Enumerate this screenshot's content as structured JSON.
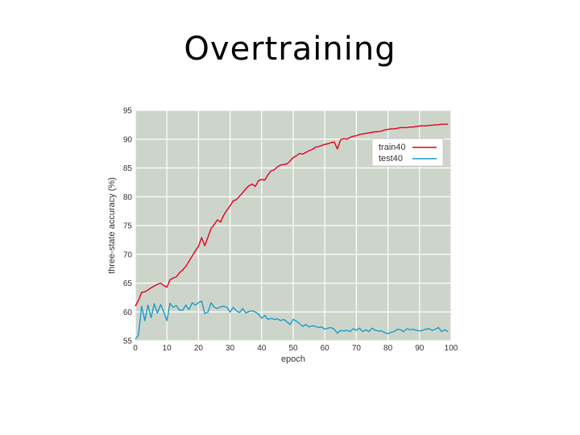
{
  "slide": {
    "title": "Overtraining"
  },
  "colors": {
    "plot_bg": "#cdd5cb",
    "grid": "#ffffff",
    "train": "#e3001b",
    "test": "#1a9bc7",
    "axis_text": "#333333"
  },
  "chart_data": {
    "type": "line",
    "title": "",
    "xlabel": "epoch",
    "ylabel": "three-state accuracy (%)",
    "xlim": [
      0,
      100
    ],
    "ylim": [
      55,
      95
    ],
    "xticks": [
      0,
      10,
      20,
      30,
      40,
      50,
      60,
      70,
      80,
      90,
      100
    ],
    "yticks": [
      55,
      60,
      65,
      70,
      75,
      80,
      85,
      90,
      95
    ],
    "grid": true,
    "legend_position": "top-right",
    "series": [
      {
        "name": "train40",
        "color": "#e3001b",
        "x": [
          0,
          1,
          2,
          3,
          4,
          5,
          6,
          7,
          8,
          9,
          10,
          11,
          12,
          13,
          14,
          15,
          16,
          17,
          18,
          19,
          20,
          21,
          22,
          23,
          24,
          25,
          26,
          27,
          28,
          29,
          30,
          31,
          32,
          33,
          34,
          35,
          36,
          37,
          38,
          39,
          40,
          41,
          42,
          43,
          44,
          45,
          46,
          47,
          48,
          49,
          50,
          51,
          52,
          53,
          54,
          55,
          56,
          57,
          58,
          59,
          60,
          61,
          62,
          63,
          64,
          65,
          66,
          67,
          68,
          69,
          70,
          71,
          72,
          73,
          74,
          75,
          76,
          77,
          78,
          79,
          80,
          81,
          82,
          83,
          84,
          85,
          86,
          87,
          88,
          89,
          90,
          91,
          92,
          93,
          94,
          95,
          96,
          97,
          98,
          99
        ],
        "y": [
          61.0,
          62.0,
          63.4,
          63.5,
          63.8,
          64.2,
          64.5,
          64.8,
          65.0,
          64.6,
          64.3,
          65.6,
          65.9,
          66.1,
          66.8,
          67.3,
          67.9,
          68.8,
          69.7,
          70.6,
          71.4,
          72.9,
          71.5,
          73.0,
          74.5,
          75.2,
          76.0,
          75.6,
          76.8,
          77.7,
          78.4,
          79.3,
          79.5,
          80.1,
          80.7,
          81.4,
          81.9,
          82.2,
          81.8,
          82.8,
          83.0,
          82.9,
          83.8,
          84.5,
          84.7,
          85.2,
          85.5,
          85.6,
          85.7,
          86.2,
          86.8,
          87.1,
          87.5,
          87.4,
          87.7,
          88.0,
          88.2,
          88.6,
          88.7,
          88.9,
          89.1,
          89.2,
          89.4,
          89.5,
          88.3,
          89.9,
          90.1,
          90.0,
          90.3,
          90.5,
          90.6,
          90.8,
          90.9,
          91.0,
          91.1,
          91.2,
          91.3,
          91.3,
          91.4,
          91.6,
          91.7,
          91.8,
          91.8,
          91.9,
          92.0,
          92.0,
          92.0,
          92.1,
          92.1,
          92.2,
          92.3,
          92.3,
          92.3,
          92.4,
          92.4,
          92.5,
          92.5,
          92.6,
          92.6,
          92.6
        ]
      },
      {
        "name": "test40",
        "color": "#1a9bc7",
        "x": [
          0,
          1,
          2,
          3,
          4,
          5,
          6,
          7,
          8,
          9,
          10,
          11,
          12,
          13,
          14,
          15,
          16,
          17,
          18,
          19,
          20,
          21,
          22,
          23,
          24,
          25,
          26,
          27,
          28,
          29,
          30,
          31,
          32,
          33,
          34,
          35,
          36,
          37,
          38,
          39,
          40,
          41,
          42,
          43,
          44,
          45,
          46,
          47,
          48,
          49,
          50,
          51,
          52,
          53,
          54,
          55,
          56,
          57,
          58,
          59,
          60,
          61,
          62,
          63,
          64,
          65,
          66,
          67,
          68,
          69,
          70,
          71,
          72,
          73,
          74,
          75,
          76,
          77,
          78,
          79,
          80,
          81,
          82,
          83,
          84,
          85,
          86,
          87,
          88,
          89,
          90,
          91,
          92,
          93,
          94,
          95,
          96,
          97,
          98,
          99
        ],
        "y": [
          55.3,
          56.0,
          61.0,
          58.5,
          61.2,
          59.0,
          61.4,
          59.8,
          61.3,
          60.0,
          58.5,
          61.5,
          60.8,
          61.1,
          60.3,
          60.3,
          61.2,
          60.4,
          61.6,
          61.2,
          61.6,
          61.9,
          59.7,
          60.0,
          61.6,
          60.8,
          60.6,
          60.9,
          61.0,
          60.8,
          60.0,
          60.8,
          60.2,
          59.9,
          60.6,
          59.8,
          60.1,
          60.2,
          60.0,
          59.6,
          58.9,
          59.4,
          58.7,
          58.9,
          58.7,
          58.8,
          58.5,
          58.7,
          58.3,
          57.8,
          58.7,
          58.4,
          58.0,
          57.5,
          57.8,
          57.4,
          57.6,
          57.5,
          57.3,
          57.4,
          57.0,
          57.2,
          57.3,
          57.0,
          56.3,
          56.8,
          56.7,
          56.8,
          56.6,
          57.1,
          56.8,
          57.2,
          56.6,
          56.9,
          56.6,
          57.2,
          56.8,
          56.7,
          56.7,
          56.4,
          56.2,
          56.5,
          56.6,
          57.0,
          56.9,
          56.6,
          57.1,
          56.9,
          57.0,
          56.8,
          56.7,
          56.8,
          57.0,
          57.1,
          56.8,
          57.0,
          57.3,
          56.6,
          56.9,
          56.6
        ]
      }
    ]
  }
}
